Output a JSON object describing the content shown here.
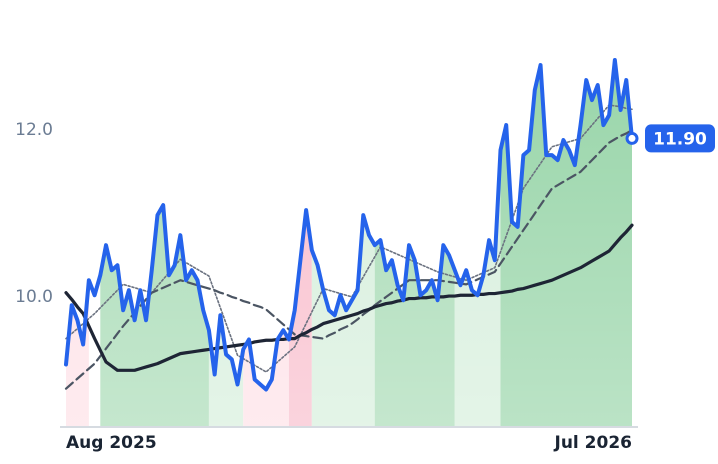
{
  "chart_data": {
    "type": "line",
    "categories": [
      "Aug 2025",
      null,
      null,
      null,
      null,
      null,
      null,
      null,
      null,
      null,
      null,
      null,
      null,
      null,
      null,
      null,
      null,
      null,
      null,
      null,
      null,
      null,
      null,
      null,
      null,
      null,
      null,
      null,
      null,
      null,
      null,
      null,
      null,
      null,
      null,
      null,
      null,
      null,
      null,
      null,
      null,
      null,
      null,
      null,
      null,
      null,
      null,
      null,
      null,
      null,
      null,
      null,
      null,
      null,
      null,
      null,
      null,
      null,
      null,
      null,
      null,
      null,
      null,
      null,
      null,
      null,
      null,
      null,
      null,
      null,
      null,
      null,
      null,
      null,
      null,
      null,
      null,
      null,
      null,
      null,
      null,
      null,
      null,
      null,
      null,
      null,
      null,
      null,
      null,
      null,
      null,
      null,
      null,
      null,
      null,
      null,
      null,
      null,
      null,
      "Jul 2026"
    ],
    "ylim": [
      8.44,
      13.32
    ],
    "yticks": [
      {
        "value": 10,
        "label": "10.0"
      },
      {
        "value": 12,
        "label": "12.0"
      }
    ],
    "grid": false,
    "area_bands": [
      {
        "from": 0,
        "to": 4,
        "color": "#fde0e6"
      },
      {
        "from": 6,
        "to": 25,
        "color": "#a5dab3"
      },
      {
        "from": 25,
        "to": 31,
        "color": "#d5eedb"
      },
      {
        "from": 31,
        "to": 39,
        "color": "#fde0e6"
      },
      {
        "from": 39,
        "to": 43,
        "color": "#f8bccb"
      },
      {
        "from": 43,
        "to": 54,
        "color": "#d5eedb"
      },
      {
        "from": 54,
        "to": 68,
        "color": "#a5dab3"
      },
      {
        "from": 68,
        "to": 76,
        "color": "#d5eedb"
      },
      {
        "from": 76,
        "to": 99,
        "color": "#96d4a7"
      }
    ],
    "series": [
      {
        "color": "#6b7280",
        "style": "dotted",
        "values": [
          9.5,
          9.56,
          9.62,
          9.68,
          9.74,
          9.8,
          9.87,
          9.94,
          10.01,
          10.08,
          10.15,
          10.13,
          10.11,
          10.09,
          10.07,
          10.05,
          10.13,
          10.21,
          10.29,
          10.37,
          10.45,
          10.41,
          10.37,
          10.33,
          10.29,
          10.25,
          10.06,
          9.87,
          9.68,
          9.49,
          9.3,
          9.26,
          9.22,
          9.18,
          9.14,
          9.1,
          9.16,
          9.22,
          9.28,
          9.34,
          9.4,
          9.54,
          9.68,
          9.82,
          9.96,
          10.1,
          10.08,
          10.06,
          10.04,
          10.02,
          10.0,
          10.12,
          10.24,
          10.36,
          10.48,
          10.6,
          10.57,
          10.54,
          10.51,
          10.48,
          10.45,
          10.42,
          10.39,
          10.36,
          10.33,
          10.3,
          10.28,
          10.26,
          10.24,
          10.22,
          10.2,
          10.23,
          10.26,
          10.29,
          10.32,
          10.35,
          10.54,
          10.73,
          10.92,
          11.11,
          11.3,
          11.4,
          11.5,
          11.6,
          11.7,
          11.8,
          11.82,
          11.84,
          11.86,
          11.88,
          11.9,
          11.98,
          12.06,
          12.14,
          12.22,
          12.3,
          12.29,
          12.28,
          12.26,
          12.25
        ]
      },
      {
        "color": "#4b5563",
        "style": "dashed",
        "values": [
          8.9,
          8.96,
          9.02,
          9.08,
          9.14,
          9.2,
          9.29,
          9.38,
          9.47,
          9.56,
          9.65,
          9.73,
          9.81,
          9.89,
          9.97,
          10.05,
          10.08,
          10.11,
          10.14,
          10.17,
          10.2,
          10.18,
          10.16,
          10.14,
          10.12,
          10.1,
          10.08,
          10.05,
          10.03,
          10.0,
          9.98,
          9.95,
          9.93,
          9.9,
          9.88,
          9.85,
          9.79,
          9.73,
          9.67,
          9.61,
          9.55,
          9.54,
          9.53,
          9.52,
          9.51,
          9.5,
          9.54,
          9.57,
          9.61,
          9.64,
          9.68,
          9.73,
          9.79,
          9.84,
          9.9,
          9.95,
          10.0,
          10.05,
          10.1,
          10.15,
          10.2,
          10.2,
          10.2,
          10.2,
          10.2,
          10.2,
          10.19,
          10.18,
          10.17,
          10.16,
          10.15,
          10.18,
          10.21,
          10.24,
          10.27,
          10.3,
          10.4,
          10.5,
          10.6,
          10.7,
          10.8,
          10.9,
          11.0,
          11.1,
          11.2,
          11.3,
          11.34,
          11.38,
          11.42,
          11.46,
          11.5,
          11.57,
          11.64,
          11.71,
          11.78,
          11.85,
          11.89,
          11.93,
          11.96,
          12.0
        ]
      },
      {
        "color": "#1e2535",
        "style": "solid",
        "values": [
          10.05,
          9.97,
          9.88,
          9.8,
          9.65,
          9.5,
          9.36,
          9.22,
          9.17,
          9.12,
          9.12,
          9.12,
          9.12,
          9.14,
          9.16,
          9.18,
          9.2,
          9.23,
          9.26,
          9.29,
          9.32,
          9.33,
          9.34,
          9.35,
          9.36,
          9.37,
          9.38,
          9.39,
          9.4,
          9.41,
          9.42,
          9.43,
          9.44,
          9.46,
          9.47,
          9.48,
          9.48,
          9.49,
          9.49,
          9.5,
          9.5,
          9.54,
          9.57,
          9.61,
          9.64,
          9.68,
          9.7,
          9.72,
          9.74,
          9.76,
          9.78,
          9.8,
          9.83,
          9.85,
          9.88,
          9.9,
          9.92,
          9.93,
          9.95,
          9.96,
          9.98,
          9.98,
          9.99,
          9.99,
          10.0,
          10.0,
          10.0,
          10.01,
          10.01,
          10.02,
          10.02,
          10.02,
          10.03,
          10.03,
          10.04,
          10.04,
          10.05,
          10.06,
          10.07,
          10.09,
          10.1,
          10.12,
          10.14,
          10.16,
          10.18,
          10.2,
          10.23,
          10.26,
          10.29,
          10.32,
          10.35,
          10.39,
          10.43,
          10.47,
          10.51,
          10.55,
          10.63,
          10.71,
          10.78,
          10.86
        ]
      },
      {
        "color": "#2563eb",
        "style": "solid",
        "area": true,
        "values": [
          9.19,
          9.9,
          9.72,
          9.43,
          10.2,
          10.02,
          10.26,
          10.62,
          10.32,
          10.38,
          9.84,
          10.08,
          9.72,
          10.08,
          9.72,
          10.32,
          10.98,
          11.1,
          10.26,
          10.38,
          10.74,
          10.2,
          10.32,
          10.2,
          9.84,
          9.6,
          9.07,
          9.78,
          9.31,
          9.25,
          8.95,
          9.37,
          9.49,
          9.01,
          8.95,
          8.89,
          9.01,
          9.49,
          9.6,
          9.49,
          9.84,
          10.44,
          11.04,
          10.56,
          10.38,
          10.08,
          9.84,
          9.78,
          10.02,
          9.84,
          9.96,
          10.08,
          10.98,
          10.74,
          10.62,
          10.68,
          10.32,
          10.44,
          10.14,
          9.96,
          10.62,
          10.44,
          10.02,
          10.08,
          10.2,
          9.96,
          10.62,
          10.5,
          10.32,
          10.14,
          10.32,
          10.08,
          10.02,
          10.26,
          10.68,
          10.44,
          11.76,
          12.06,
          10.9,
          10.84,
          11.7,
          11.76,
          12.48,
          12.78,
          11.7,
          11.7,
          11.64,
          11.88,
          11.76,
          11.58,
          12.06,
          12.6,
          12.36,
          12.54,
          12.06,
          12.18,
          12.84,
          12.24,
          12.6,
          11.9
        ],
        "value_labels": [
          null,
          null,
          null,
          null,
          null,
          null,
          null,
          null,
          null,
          null,
          null,
          null,
          null,
          null,
          null,
          null,
          null,
          null,
          null,
          null,
          null,
          null,
          null,
          null,
          null,
          null,
          null,
          null,
          null,
          null,
          null,
          null,
          null,
          null,
          null,
          null,
          null,
          null,
          null,
          null,
          null,
          null,
          null,
          null,
          null,
          null,
          null,
          null,
          null,
          null,
          null,
          null,
          null,
          null,
          null,
          null,
          null,
          null,
          null,
          null,
          null,
          null,
          null,
          null,
          null,
          null,
          null,
          null,
          null,
          null,
          null,
          null,
          null,
          null,
          null,
          null,
          null,
          null,
          null,
          null,
          null,
          null,
          null,
          null,
          null,
          null,
          null,
          null,
          null,
          null,
          null,
          null,
          null,
          null,
          null,
          null,
          null,
          null,
          null,
          "11.90"
        ]
      }
    ]
  }
}
